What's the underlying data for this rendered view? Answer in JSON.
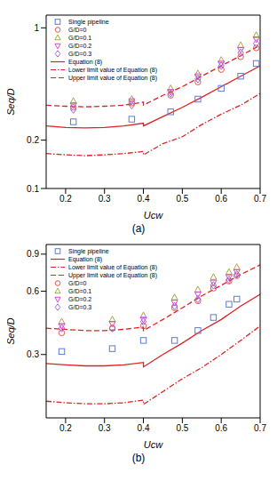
{
  "chart_data": [
    {
      "type": "scatter",
      "title": "(a)",
      "x_label": "Ucw",
      "y_label": "Seq/D",
      "log": "y",
      "grid": false,
      "legend": "upper left",
      "xlim": [
        0.15,
        0.7
      ],
      "xticks": [
        0.2,
        0.3,
        0.4,
        0.5,
        0.6,
        0.7
      ],
      "ylim": [
        0.1,
        1.2
      ],
      "yticks": [
        0.1,
        0.2,
        1
      ],
      "series": [
        {
          "name": "Single pipeline",
          "type": "scatter",
          "marker": "square",
          "color": "#5b7bd5",
          "x": [
            0.22,
            0.37,
            0.47,
            0.54,
            0.6,
            0.65,
            0.69
          ],
          "values": [
            0.26,
            0.27,
            0.3,
            0.36,
            0.42,
            0.5,
            0.6
          ]
        },
        {
          "name": "G/D=0",
          "type": "scatter",
          "marker": "circle",
          "color": "#e8544e",
          "x": [
            0.22,
            0.37,
            0.47,
            0.54,
            0.6,
            0.65,
            0.69
          ],
          "values": [
            0.32,
            0.34,
            0.38,
            0.46,
            0.55,
            0.66,
            0.75
          ]
        },
        {
          "name": "G/D=0.1",
          "type": "scatter",
          "marker": "triangle",
          "color": "#a8a838",
          "x": [
            0.22,
            0.37,
            0.47,
            0.54,
            0.6,
            0.65,
            0.69
          ],
          "values": [
            0.35,
            0.36,
            0.42,
            0.52,
            0.63,
            0.78,
            0.9
          ]
        },
        {
          "name": "G/D=0.2",
          "type": "scatter",
          "marker": "triangle_down",
          "color": "#e040e0",
          "x": [
            0.22,
            0.37,
            0.47,
            0.54,
            0.6,
            0.65,
            0.69
          ],
          "values": [
            0.33,
            0.35,
            0.4,
            0.5,
            0.6,
            0.73,
            0.85
          ]
        },
        {
          "name": "G/D=0.3",
          "type": "scatter",
          "marker": "diamond",
          "color": "#9a6ad8",
          "x": [
            0.22,
            0.37,
            0.47,
            0.54,
            0.6,
            0.65,
            0.69
          ],
          "values": [
            0.31,
            0.33,
            0.39,
            0.48,
            0.58,
            0.7,
            0.8
          ]
        },
        {
          "name": "Equation (8)",
          "type": "line",
          "line_style": "solid",
          "color": "#e02020",
          "x": [
            0.15,
            0.2,
            0.25,
            0.3,
            0.35,
            0.4,
            0.4,
            0.45,
            0.5,
            0.55,
            0.6,
            0.65,
            0.7
          ],
          "values": [
            0.245,
            0.24,
            0.238,
            0.24,
            0.245,
            0.255,
            0.245,
            0.28,
            0.32,
            0.37,
            0.43,
            0.5,
            0.58
          ]
        },
        {
          "name": "Lower limit value of Equation (8)",
          "type": "line",
          "line_style": "dashdot",
          "color": "#e02020",
          "x": [
            0.15,
            0.2,
            0.25,
            0.3,
            0.35,
            0.4,
            0.4,
            0.45,
            0.5,
            0.55,
            0.6,
            0.65,
            0.7
          ],
          "values": [
            0.165,
            0.162,
            0.16,
            0.162,
            0.165,
            0.17,
            0.162,
            0.19,
            0.21,
            0.25,
            0.29,
            0.33,
            0.39
          ]
        },
        {
          "name": "Upper limit value of Equation (8)",
          "type": "line",
          "line_style": "dashed",
          "color": "#e02020",
          "x": [
            0.15,
            0.2,
            0.25,
            0.3,
            0.35,
            0.4,
            0.4,
            0.45,
            0.5,
            0.55,
            0.6,
            0.65,
            0.7
          ],
          "values": [
            0.33,
            0.325,
            0.322,
            0.325,
            0.33,
            0.345,
            0.33,
            0.38,
            0.43,
            0.5,
            0.58,
            0.67,
            0.78
          ]
        }
      ]
    },
    {
      "type": "scatter",
      "title": "(b)",
      "x_label": "Ucw",
      "y_label": "Seq/D",
      "log": "y",
      "grid": false,
      "legend": "upper left",
      "xlim": [
        0.15,
        0.7
      ],
      "xticks": [
        0.2,
        0.3,
        0.4,
        0.5,
        0.6,
        0.7
      ],
      "ylim": [
        0.15,
        1.0
      ],
      "yticks": [
        0.3,
        0.6,
        0.9
      ],
      "series": [
        {
          "name": "Single pipeline",
          "type": "scatter",
          "marker": "square",
          "color": "#5b7bd5",
          "x": [
            0.19,
            0.32,
            0.4,
            0.48,
            0.54,
            0.58,
            0.62,
            0.64
          ],
          "values": [
            0.31,
            0.32,
            0.35,
            0.35,
            0.39,
            0.45,
            0.52,
            0.55
          ]
        },
        {
          "name": "Equation (8)",
          "type": "line",
          "line_style": "solid",
          "color": "#e02020",
          "x": [
            0.15,
            0.2,
            0.25,
            0.3,
            0.35,
            0.4,
            0.4,
            0.45,
            0.5,
            0.55,
            0.6,
            0.65,
            0.7
          ],
          "values": [
            0.272,
            0.268,
            0.265,
            0.265,
            0.268,
            0.275,
            0.262,
            0.3,
            0.34,
            0.39,
            0.44,
            0.51,
            0.58
          ]
        },
        {
          "name": "Lower limit value of Equation (8)",
          "type": "line",
          "line_style": "dashdot",
          "color": "#e02020",
          "x": [
            0.15,
            0.2,
            0.25,
            0.3,
            0.35,
            0.4,
            0.4,
            0.45,
            0.5,
            0.55,
            0.6,
            0.65,
            0.7
          ],
          "values": [
            0.18,
            0.177,
            0.175,
            0.175,
            0.177,
            0.182,
            0.174,
            0.2,
            0.23,
            0.26,
            0.3,
            0.35,
            0.41
          ]
        },
        {
          "name": "Upper limit value of Equation (8)",
          "type": "line",
          "line_style": "dashed",
          "color": "#e02020",
          "x": [
            0.15,
            0.2,
            0.25,
            0.3,
            0.35,
            0.4,
            0.4,
            0.45,
            0.5,
            0.55,
            0.6,
            0.65,
            0.7
          ],
          "values": [
            0.4,
            0.395,
            0.39,
            0.39,
            0.395,
            0.405,
            0.39,
            0.44,
            0.5,
            0.57,
            0.64,
            0.72,
            0.8
          ]
        },
        {
          "name": "G/D=0",
          "type": "scatter",
          "marker": "circle",
          "color": "#e8544e",
          "x": [
            0.19,
            0.32,
            0.4,
            0.48,
            0.54,
            0.58,
            0.62,
            0.64
          ],
          "values": [
            0.38,
            0.4,
            0.41,
            0.5,
            0.54,
            0.62,
            0.67,
            0.71
          ]
        },
        {
          "name": "G/D=0.1",
          "type": "scatter",
          "marker": "triangle",
          "color": "#a8a838",
          "x": [
            0.19,
            0.32,
            0.4,
            0.48,
            0.54,
            0.58,
            0.62,
            0.64
          ],
          "values": [
            0.43,
            0.44,
            0.46,
            0.56,
            0.61,
            0.7,
            0.74,
            0.78
          ]
        },
        {
          "name": "G/D=0.2",
          "type": "scatter",
          "marker": "triangle_down",
          "color": "#e040e0",
          "x": [
            0.19,
            0.32,
            0.4,
            0.48,
            0.54,
            0.58,
            0.62,
            0.64
          ],
          "values": [
            0.41,
            0.42,
            0.44,
            0.53,
            0.58,
            0.66,
            0.7,
            0.74
          ]
        },
        {
          "name": "G/D=0.3",
          "type": "scatter",
          "marker": "diamond",
          "color": "#9a6ad8",
          "x": [
            0.19,
            0.32,
            0.4,
            0.48,
            0.54,
            0.58,
            0.62,
            0.64
          ],
          "values": [
            0.4,
            0.4,
            0.43,
            0.51,
            0.55,
            0.64,
            0.68,
            0.72
          ]
        }
      ]
    }
  ]
}
